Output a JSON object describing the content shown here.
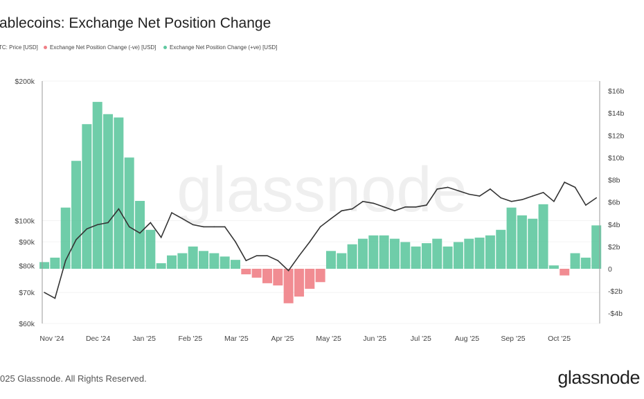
{
  "title": "ablecoins: Exchange Net Position Change",
  "legend": [
    {
      "label": "TC: Price [USD]",
      "color": "#333333"
    },
    {
      "label": "Exchange Net Position Change (-ve) [USD]",
      "color": "#ef7f86"
    },
    {
      "label": "Exchange Net Position Change (+ve) [USD]",
      "color": "#5fc8a0"
    }
  ],
  "watermark": "glassnode",
  "footer": "025 Glassnode. All Rights Reserved.",
  "logo": "glassnode",
  "chart_data": {
    "type": "bar+line",
    "x_tick_labels": [
      "Nov '24",
      "Dec '24",
      "Jan '25",
      "Feb '25",
      "Mar '25",
      "Apr '25",
      "May '25",
      "Jun '25",
      "Jul '25",
      "Aug '25",
      "Sep '25",
      "Oct '25"
    ],
    "y_left": {
      "scale": "log",
      "range": [
        60000,
        200000
      ],
      "ticks": [
        60000,
        70000,
        80000,
        90000,
        100000,
        200000
      ],
      "tick_labels": [
        "$60k",
        "$70k",
        "$80k",
        "$90k",
        "$100k",
        "$200k"
      ]
    },
    "y_right": {
      "scale": "linear",
      "range": [
        -4,
        16
      ],
      "unit": "billion USD",
      "ticks": [
        -4,
        -2,
        0,
        2,
        4,
        6,
        8,
        10,
        12,
        14,
        16
      ],
      "tick_labels": [
        "-$4b",
        "-$2b",
        "0",
        "$2b",
        "$4b",
        "$6b",
        "$8b",
        "$10b",
        "$12b",
        "$14b",
        "$16b"
      ]
    },
    "grid": true,
    "dates": [
      "2024-10-27",
      "2024-11-03",
      "2024-11-10",
      "2024-11-17",
      "2024-11-24",
      "2024-12-01",
      "2024-12-08",
      "2024-12-15",
      "2024-12-22",
      "2024-12-29",
      "2025-01-05",
      "2025-01-12",
      "2025-01-19",
      "2025-01-26",
      "2025-02-02",
      "2025-02-09",
      "2025-02-16",
      "2025-02-23",
      "2025-03-02",
      "2025-03-09",
      "2025-03-16",
      "2025-03-23",
      "2025-03-30",
      "2025-04-06",
      "2025-04-13",
      "2025-04-20",
      "2025-04-27",
      "2025-05-04",
      "2025-05-11",
      "2025-05-18",
      "2025-05-25",
      "2025-06-01",
      "2025-06-08",
      "2025-06-15",
      "2025-06-22",
      "2025-06-29",
      "2025-07-06",
      "2025-07-13",
      "2025-07-20",
      "2025-07-27",
      "2025-08-03",
      "2025-08-10",
      "2025-08-17",
      "2025-08-24",
      "2025-08-31",
      "2025-09-07",
      "2025-09-14",
      "2025-09-21",
      "2025-09-28",
      "2025-10-05",
      "2025-10-12",
      "2025-10-19",
      "2025-10-26"
    ],
    "series": [
      {
        "name": "BTC: Price [USD]",
        "type": "line",
        "axis": "left",
        "color": "#333333",
        "values": [
          70000,
          68000,
          82000,
          91000,
          96000,
          98000,
          99000,
          106000,
          97000,
          94000,
          99000,
          92000,
          104000,
          101000,
          98000,
          97000,
          97000,
          97000,
          90000,
          82000,
          84000,
          84000,
          82000,
          78000,
          84000,
          90000,
          97000,
          101000,
          105000,
          106000,
          110000,
          109000,
          107000,
          105000,
          107000,
          107000,
          108000,
          117000,
          118000,
          116000,
          114000,
          113000,
          117000,
          112000,
          110000,
          111000,
          113000,
          115000,
          110000,
          121000,
          118000,
          108000,
          112000
        ]
      },
      {
        "name": "Exchange Net Position Change [USD]",
        "type": "bar",
        "axis": "right",
        "unit": "billion USD",
        "color_pos": "#5fc8a0",
        "color_neg": "#ef7f86",
        "values": [
          0.6,
          1.0,
          5.5,
          9.7,
          13,
          15,
          13.9,
          13.6,
          10,
          6.1,
          3.5,
          0.5,
          1.2,
          1.4,
          2.0,
          1.6,
          1.4,
          1.1,
          0.8,
          -0.5,
          -0.8,
          -1.3,
          -1.5,
          -3.1,
          -2.5,
          -1.8,
          -1.2,
          1.6,
          1.4,
          2.2,
          2.7,
          3,
          3,
          2.7,
          2.4,
          2.0,
          2.3,
          2.7,
          2.0,
          2.4,
          2.7,
          2.8,
          3,
          3.5,
          5.5,
          4.8,
          4.5,
          5.8,
          0.3,
          -0.6,
          1.4,
          1.0,
          3.9
        ]
      }
    ]
  }
}
